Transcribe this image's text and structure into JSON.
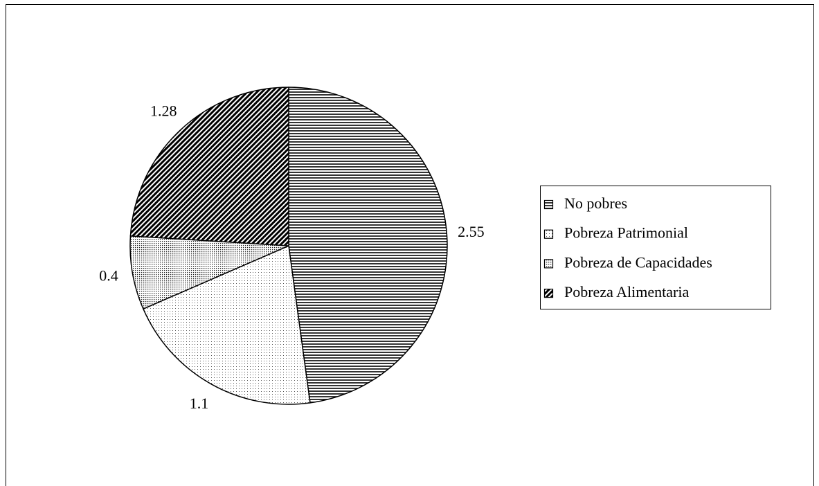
{
  "chart_data": {
    "type": "pie",
    "categories": [
      "No pobres",
      "Pobreza Patrimonial",
      "Pobreza de Capacidades",
      "Pobreza Alimentaria"
    ],
    "values": [
      2.55,
      1.1,
      0.4,
      1.28
    ],
    "legend": "right"
  }
}
